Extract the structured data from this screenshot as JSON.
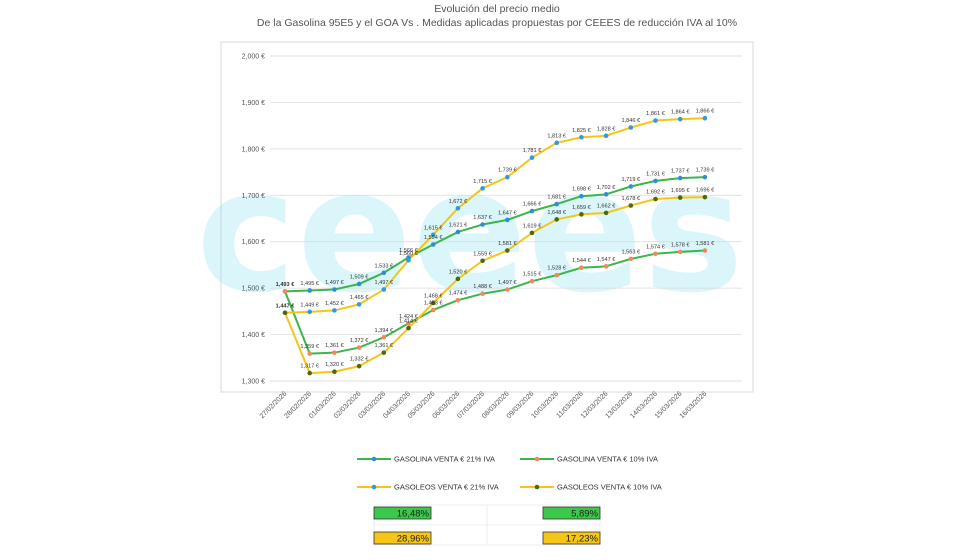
{
  "chart_data": {
    "type": "line",
    "title": "Evolución del precio medio",
    "subtitle": "De la Gasolina 95E5 y el GOA Vs . Medidas aplicadas propuestas por CEEES de reducción IVA al 10%",
    "watermark": "ceees",
    "ylim": [
      1300,
      2000
    ],
    "yticks": [
      "1,300 €",
      "1,400 €",
      "1,500 €",
      "1,600 €",
      "1,700 €",
      "1,800 €",
      "1,900 €",
      "2,000 €"
    ],
    "ytick_values": [
      1300,
      1400,
      1500,
      1600,
      1700,
      1800,
      1900,
      2000
    ],
    "categories": [
      "27/02/2026",
      "28/02/2026",
      "01/03/2026",
      "02/03/2026",
      "03/03/2026",
      "04/03/2026",
      "05/03/2026",
      "06/03/2026",
      "07/03/2026",
      "08/03/2026",
      "09/03/2026",
      "10/03/2026",
      "11/03/2026",
      "12/03/2026",
      "13/03/2026",
      "14/03/2026",
      "15/03/2026",
      "16/03/2026"
    ],
    "series": [
      {
        "name": "GASOLINA VENTA € 21% IVA",
        "line_color": "#3cb54a",
        "marker_color": "#2e8fd6",
        "values": [
          1493,
          1495,
          1497,
          1509,
          1533,
          1566,
          1594,
          1621,
          1637,
          1647,
          1666,
          1681,
          1698,
          1702,
          1719,
          1731,
          1737,
          1739
        ],
        "labels": [
          "1,493 €",
          "1,495 €",
          "1,497 €",
          "1,509 €",
          "1,533 €",
          "1,566 €",
          "1,594 €",
          "1,621 €",
          "1,637 €",
          "1,647 €",
          "1,666 €",
          "1,681 €",
          "1,698 €",
          "1,702 €",
          "1,719 €",
          "1,731 €",
          "1,737 €",
          "1,739 €"
        ]
      },
      {
        "name": "GASOLINA VENTA € 10% IVA",
        "line_color": "#3cb54a",
        "marker_color": "#f08a5d",
        "values": [
          1493,
          1359,
          1361,
          1372,
          1394,
          1424,
          1453,
          1474,
          1488,
          1497,
          1515,
          1528,
          1544,
          1547,
          1563,
          1574,
          1578,
          1581
        ],
        "labels": [
          "",
          "1,359 €",
          "1,361 €",
          "1,372 €",
          "1,394 €",
          "1,424 €",
          "1,453 €",
          "1,474 €",
          "1,488 €",
          "1,497 €",
          "1,515 €",
          "1,528 €",
          "1,544 €",
          "1,547 €",
          "1,563 €",
          "1,574 €",
          "1,578 €",
          "1,581 €"
        ]
      },
      {
        "name": "GASOLEOS  VENTA € 21% IVA",
        "line_color": "#f5c518",
        "marker_color": "#2e9be0",
        "values": [
          1447,
          1449,
          1452,
          1465,
          1497,
          1560,
          1615,
          1672,
          1715,
          1739,
          1781,
          1813,
          1825,
          1828,
          1846,
          1861,
          1864,
          1866
        ],
        "labels": [
          "1,447 €",
          "1,449 €",
          "1,452 €",
          "1,465 €",
          "1,497 €",
          "1,560 €",
          "1,615 €",
          "1,672 €",
          "1,715 €",
          "1,739 €",
          "1,781 €",
          "1,813 €",
          "1,825 €",
          "1,828 €",
          "1,846 €",
          "1,861 €",
          "1,864 €",
          "1,866 €"
        ]
      },
      {
        "name": "GASOLEOS  VENTA € 10% IVA",
        "line_color": "#f5c518",
        "marker_color": "#4a6a10",
        "values": [
          1447,
          1317,
          1320,
          1332,
          1361,
          1414,
          1468,
          1520,
          1559,
          1581,
          1619,
          1648,
          1659,
          1662,
          1678,
          1692,
          1695,
          1696
        ],
        "labels": [
          "",
          "1,317 €",
          "1,320 €",
          "1,332 €",
          "1,361 €",
          "1,414 €",
          "1,468 €",
          "1,520 €",
          "1,559 €",
          "1,581 €",
          "1,619 €",
          "1,648 €",
          "1,659 €",
          "1,662 €",
          "1,678 €",
          "1,692 €",
          "1,695 €",
          "1,696 €"
        ]
      }
    ],
    "summary_boxes": [
      {
        "value": "16,48%",
        "color": "#3cc84a"
      },
      {
        "value": "5,89%",
        "color": "#3cc84a"
      },
      {
        "value": "28,96%",
        "color": "#f5c518"
      },
      {
        "value": "17,23%",
        "color": "#f5c518"
      }
    ]
  }
}
